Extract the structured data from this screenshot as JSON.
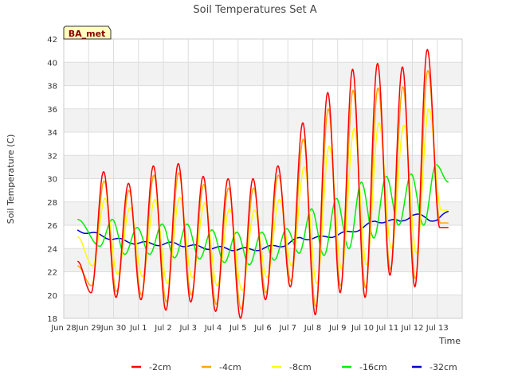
{
  "chart_data": {
    "type": "line",
    "title": "Soil Temperatures Set A",
    "xlabel": "Time",
    "ylabel": "Soil Temperature (C)",
    "badge": "BA_met",
    "xlim": [
      0,
      16
    ],
    "ylim": [
      18,
      42
    ],
    "yticks": [
      18,
      20,
      22,
      24,
      26,
      28,
      30,
      32,
      34,
      36,
      38,
      40,
      42
    ],
    "xtick_labels": [
      "Jun 28",
      "Jun 29",
      "Jun 30",
      "Jul 1",
      "Jul 2",
      "Jul 3",
      "Jul 4",
      "Jul 5",
      "Jul 6",
      "Jul 7",
      "Jul 8",
      "Jul 9",
      "Jul 10",
      "Jul 11",
      "Jul 12",
      "Jul 13"
    ],
    "xtick_values": [
      0,
      1,
      2,
      3,
      4,
      5,
      6,
      7,
      8,
      9,
      10,
      11,
      12,
      13,
      14,
      15
    ],
    "x_start": 0.55,
    "x_end": 15.45,
    "grid": true,
    "legend_position": "bottom",
    "series": [
      {
        "name": "-2cm",
        "color": "#ff0000",
        "peak_phase": 0.6,
        "mins": [
          20.2,
          19.8,
          19.6,
          18.7,
          19.4,
          18.6,
          18.0,
          19.6,
          20.7,
          18.3,
          20.2,
          19.8,
          21.7,
          20.7,
          25.8
        ],
        "maxs": [
          30.6,
          29.6,
          31.1,
          31.3,
          30.2,
          30.0,
          30.0,
          31.1,
          34.8,
          37.4,
          39.4,
          39.9,
          39.6,
          41.1,
          41.1
        ],
        "start": 22.9,
        "end": 25.8
      },
      {
        "name": "-4cm",
        "color": "#ffa500",
        "peak_phase": 0.62,
        "mins": [
          20.8,
          20.3,
          20.0,
          19.4,
          20.0,
          19.2,
          18.8,
          20.2,
          21.2,
          19.0,
          20.8,
          20.6,
          22.2,
          21.4,
          26.2
        ],
        "maxs": [
          29.8,
          29.0,
          30.3,
          30.5,
          29.5,
          29.2,
          29.2,
          30.3,
          33.4,
          36.0,
          37.6,
          37.8,
          37.9,
          39.3,
          39.3
        ],
        "start": 22.5,
        "end": 26.2
      },
      {
        "name": "-8cm",
        "color": "#ffff00",
        "peak_phase": 0.66,
        "mins": [
          22.5,
          21.8,
          21.6,
          21.0,
          21.5,
          20.8,
          20.4,
          21.5,
          22.5,
          21.0,
          22.2,
          22.6,
          24.0,
          23.6,
          27.3
        ],
        "maxs": [
          28.3,
          27.5,
          28.2,
          28.4,
          27.9,
          27.4,
          27.3,
          28.2,
          31.0,
          32.8,
          34.3,
          34.8,
          34.6,
          36.0,
          36.0
        ],
        "start": 25.0,
        "end": 27.3
      },
      {
        "name": "-16cm",
        "color": "#00ee00",
        "peak_phase": 0.95,
        "mins": [
          24.2,
          23.5,
          23.5,
          23.2,
          23.1,
          22.8,
          22.6,
          23.0,
          23.6,
          23.4,
          24.0,
          24.9,
          26.0,
          26.0,
          29.7
        ],
        "maxs": [
          26.5,
          25.8,
          26.1,
          26.1,
          25.6,
          25.4,
          25.4,
          25.7,
          27.4,
          28.3,
          29.7,
          30.2,
          30.4,
          31.2,
          31.2
        ],
        "start": 26.5,
        "end": 29.7
      },
      {
        "name": "-32cm",
        "color": "#0000cc",
        "trend_x": [
          0.55,
          1.5,
          2.5,
          3.5,
          4.5,
          5.5,
          6.5,
          7.5,
          8.3,
          9.0,
          9.5,
          10.3,
          11.0,
          11.5,
          12.0,
          12.5,
          13.0,
          13.5,
          14.0,
          14.3,
          14.7,
          15.0,
          15.45
        ],
        "trend_y": [
          25.6,
          25.1,
          24.6,
          24.4,
          24.4,
          24.1,
          24.0,
          23.9,
          24.1,
          24.4,
          24.9,
          24.9,
          25.2,
          25.4,
          25.8,
          26.3,
          26.4,
          26.3,
          26.9,
          26.8,
          26.5,
          26.5,
          27.1
        ],
        "amplitude": 0.15,
        "peak_phase": 0.3
      }
    ]
  }
}
